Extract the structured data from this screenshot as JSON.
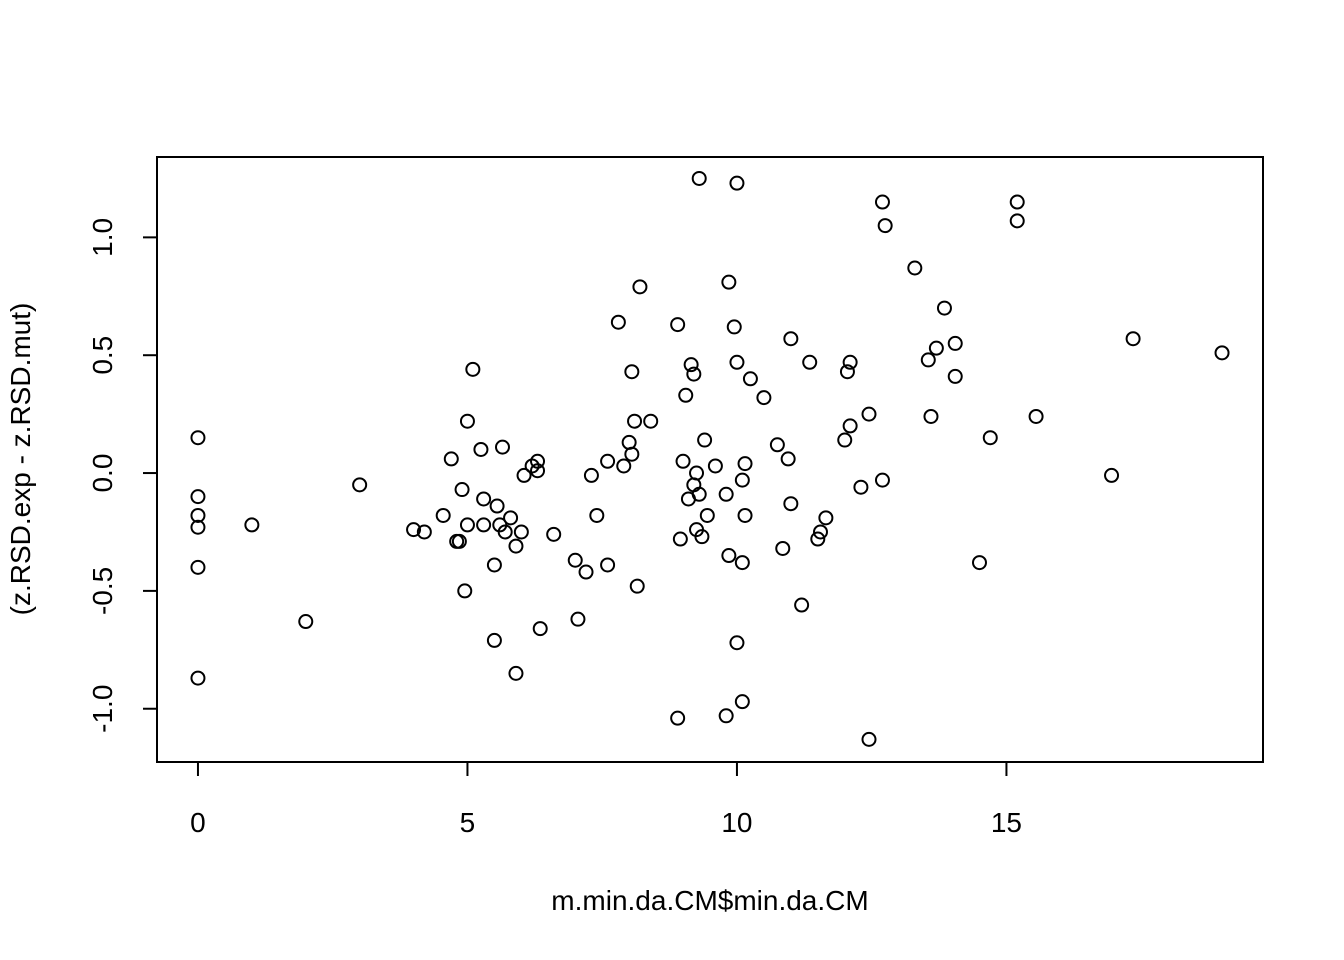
{
  "chart_data": {
    "type": "scatter",
    "title": "",
    "xlabel": "m.min.da.CM$min.da.CM",
    "ylabel": "(z.RSD.exp - z.RSD.mut)",
    "xlim": [
      -0.76,
      19.76
    ],
    "ylim": [
      -1.226,
      1.341
    ],
    "xticks": [
      0,
      5,
      10,
      15
    ],
    "xtick_labels": [
      "0",
      "5",
      "10",
      "15"
    ],
    "yticks": [
      -1.0,
      -0.5,
      0.0,
      0.5,
      1.0
    ],
    "ytick_labels": [
      "-1.0",
      "-0.5",
      "0.0",
      "0.5",
      "1.0"
    ],
    "grid": false,
    "legend": "none",
    "marker": "open-circle",
    "points": [
      [
        0.0,
        0.15
      ],
      [
        0.0,
        -0.1
      ],
      [
        0.0,
        -0.18
      ],
      [
        0.0,
        -0.23
      ],
      [
        0.0,
        -0.4
      ],
      [
        0.0,
        -0.87
      ],
      [
        1.0,
        -0.22
      ],
      [
        2.0,
        -0.63
      ],
      [
        3.0,
        -0.05
      ],
      [
        4.0,
        -0.24
      ],
      [
        4.2,
        -0.25
      ],
      [
        4.55,
        -0.18
      ],
      [
        4.7,
        0.06
      ],
      [
        4.8,
        -0.29
      ],
      [
        4.85,
        -0.29
      ],
      [
        4.9,
        -0.07
      ],
      [
        4.95,
        -0.5
      ],
      [
        5.0,
        -0.22
      ],
      [
        5.0,
        0.22
      ],
      [
        5.1,
        0.44
      ],
      [
        5.25,
        0.1
      ],
      [
        5.3,
        -0.11
      ],
      [
        5.3,
        -0.22
      ],
      [
        5.5,
        -0.71
      ],
      [
        5.5,
        -0.39
      ],
      [
        5.55,
        -0.14
      ],
      [
        5.6,
        -0.22
      ],
      [
        5.65,
        0.11
      ],
      [
        5.7,
        -0.25
      ],
      [
        5.8,
        -0.19
      ],
      [
        5.9,
        -0.85
      ],
      [
        5.9,
        -0.31
      ],
      [
        6.0,
        -0.25
      ],
      [
        6.05,
        -0.01
      ],
      [
        6.2,
        0.03
      ],
      [
        6.3,
        0.05
      ],
      [
        6.3,
        0.01
      ],
      [
        6.35,
        -0.66
      ],
      [
        6.6,
        -0.26
      ],
      [
        7.0,
        -0.37
      ],
      [
        7.05,
        -0.62
      ],
      [
        7.2,
        -0.42
      ],
      [
        7.3,
        -0.01
      ],
      [
        7.4,
        -0.18
      ],
      [
        7.6,
        0.05
      ],
      [
        7.6,
        -0.39
      ],
      [
        7.8,
        0.64
      ],
      [
        7.9,
        0.03
      ],
      [
        8.0,
        0.13
      ],
      [
        8.05,
        0.08
      ],
      [
        8.05,
        0.43
      ],
      [
        8.1,
        0.22
      ],
      [
        8.15,
        -0.48
      ],
      [
        8.2,
        0.79
      ],
      [
        8.4,
        0.22
      ],
      [
        8.9,
        -1.04
      ],
      [
        8.9,
        0.63
      ],
      [
        8.95,
        -0.28
      ],
      [
        9.0,
        0.05
      ],
      [
        9.05,
        0.33
      ],
      [
        9.1,
        -0.11
      ],
      [
        9.15,
        0.46
      ],
      [
        9.2,
        0.42
      ],
      [
        9.2,
        -0.05
      ],
      [
        9.25,
        -0.24
      ],
      [
        9.25,
        0.0
      ],
      [
        9.3,
        -0.09
      ],
      [
        9.3,
        1.25
      ],
      [
        9.35,
        -0.27
      ],
      [
        9.4,
        0.14
      ],
      [
        9.45,
        -0.18
      ],
      [
        9.6,
        0.03
      ],
      [
        9.8,
        -1.03
      ],
      [
        9.8,
        -0.09
      ],
      [
        9.85,
        0.81
      ],
      [
        9.85,
        -0.35
      ],
      [
        9.95,
        0.62
      ],
      [
        10.0,
        1.23
      ],
      [
        10.0,
        -0.72
      ],
      [
        10.0,
        0.47
      ],
      [
        10.1,
        -0.38
      ],
      [
        10.1,
        -0.97
      ],
      [
        10.1,
        -0.03
      ],
      [
        10.15,
        -0.18
      ],
      [
        10.15,
        0.04
      ],
      [
        10.25,
        0.4
      ],
      [
        10.5,
        0.32
      ],
      [
        10.75,
        0.12
      ],
      [
        10.85,
        -0.32
      ],
      [
        10.95,
        0.06
      ],
      [
        11.0,
        -0.13
      ],
      [
        11.0,
        0.57
      ],
      [
        11.2,
        -0.56
      ],
      [
        11.35,
        0.47
      ],
      [
        11.5,
        -0.28
      ],
      [
        11.55,
        -0.25
      ],
      [
        11.65,
        -0.19
      ],
      [
        12.0,
        0.14
      ],
      [
        12.05,
        0.43
      ],
      [
        12.1,
        0.47
      ],
      [
        12.1,
        0.2
      ],
      [
        12.3,
        -0.06
      ],
      [
        12.45,
        0.25
      ],
      [
        12.45,
        -1.13
      ],
      [
        12.7,
        -0.03
      ],
      [
        12.7,
        1.15
      ],
      [
        12.75,
        1.05
      ],
      [
        13.3,
        0.87
      ],
      [
        13.55,
        0.48
      ],
      [
        13.6,
        0.24
      ],
      [
        13.7,
        0.53
      ],
      [
        13.85,
        0.7
      ],
      [
        14.05,
        0.55
      ],
      [
        14.05,
        0.41
      ],
      [
        14.5,
        -0.38
      ],
      [
        14.7,
        0.15
      ],
      [
        15.2,
        1.07
      ],
      [
        15.2,
        1.15
      ],
      [
        15.55,
        0.24
      ],
      [
        16.95,
        -0.01
      ],
      [
        17.35,
        0.57
      ],
      [
        19.0,
        0.51
      ]
    ]
  }
}
